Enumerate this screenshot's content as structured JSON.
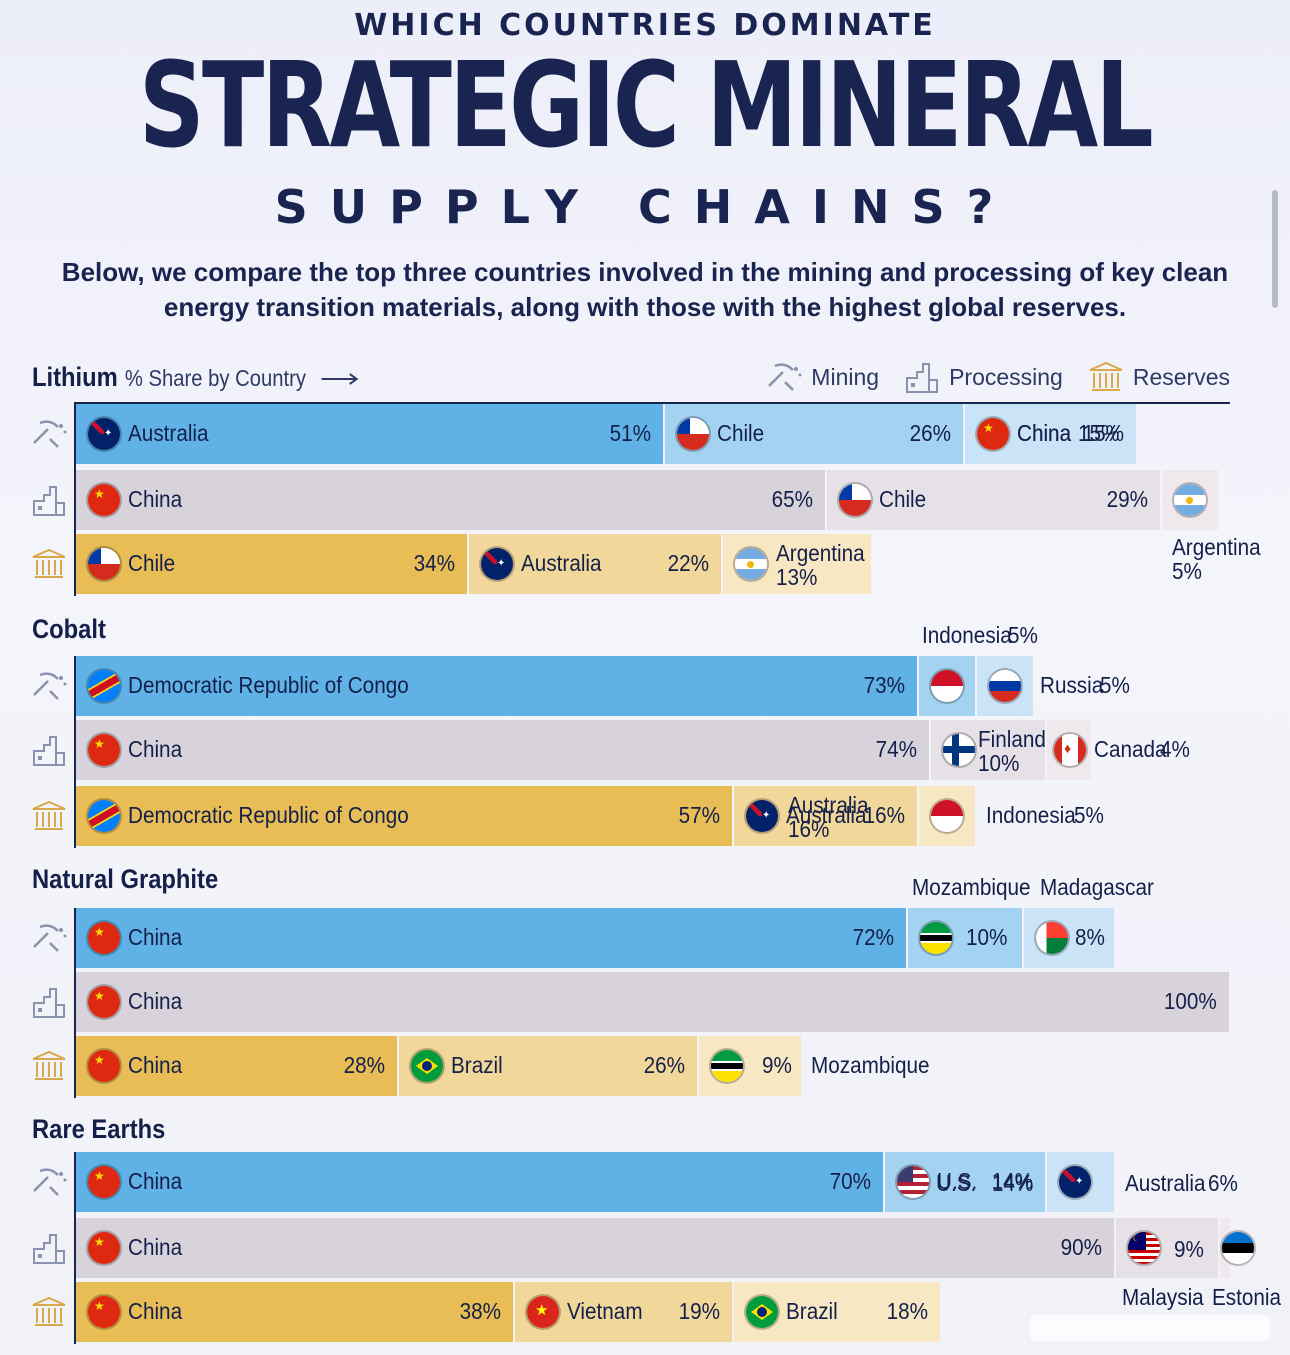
{
  "header": {
    "kicker": "WHICH COUNTRIES DOMINATE",
    "title": "STRATEGIC MINERAL",
    "subtitle": "SUPPLY CHAINS?",
    "intro": "Below, we compare the top three countries involved in the mining and processing of key clean energy transition materials, along with those with the highest global reserves."
  },
  "legend": {
    "share_label": "% Share by Country",
    "mining": "Mining",
    "processing": "Processing",
    "reserves": "Reserves"
  },
  "colors": {
    "mining": [
      "#5fb1e6",
      "#a4d2f1",
      "#cbe3f6"
    ],
    "processing": [
      "#d8d3da",
      "#e6e1e6",
      "#efe9ee"
    ],
    "reserves": [
      "#e8bd55",
      "#f1d79a",
      "#f7e7c2"
    ],
    "axis": "#1a2450"
  },
  "chart_data": {
    "type": "bar",
    "orientation": "horizontal-stacked",
    "unit": "% Share by Country",
    "minerals": [
      {
        "name": "Lithium",
        "mining": [
          {
            "country": "Australia",
            "value": 51
          },
          {
            "country": "Chile",
            "value": 26
          },
          {
            "country": "China",
            "value": 15
          }
        ],
        "processing": [
          {
            "country": "China",
            "value": 65
          },
          {
            "country": "Chile",
            "value": 29
          },
          {
            "country": "Argentina",
            "value": 5
          }
        ],
        "reserves": [
          {
            "country": "Chile",
            "value": 34
          },
          {
            "country": "Australia",
            "value": 22
          },
          {
            "country": "Argentina",
            "value": 13
          }
        ]
      },
      {
        "name": "Cobalt",
        "mining": [
          {
            "country": "Democratic Republic of Congo",
            "value": 73
          },
          {
            "country": "Indonesia",
            "value": 5
          },
          {
            "country": "Russia",
            "value": 5
          }
        ],
        "processing": [
          {
            "country": "China",
            "value": 74
          },
          {
            "country": "Finland",
            "value": 10
          },
          {
            "country": "Canada",
            "value": 4
          }
        ],
        "reserves": [
          {
            "country": "Democratic Republic of Congo",
            "value": 57
          },
          {
            "country": "Australia",
            "value": 16
          },
          {
            "country": "Indonesia",
            "value": 5
          }
        ]
      },
      {
        "name": "Natural Graphite",
        "mining": [
          {
            "country": "China",
            "value": 72
          },
          {
            "country": "Mozambique",
            "value": 10
          },
          {
            "country": "Madagascar",
            "value": 8
          }
        ],
        "processing": [
          {
            "country": "China",
            "value": 100
          }
        ],
        "reserves": [
          {
            "country": "China",
            "value": 28
          },
          {
            "country": "Brazil",
            "value": 26
          },
          {
            "country": "Mozambique",
            "value": 9
          }
        ]
      },
      {
        "name": "Rare Earths",
        "mining": [
          {
            "country": "China",
            "value": 70
          },
          {
            "country": "U.S.",
            "value": 14
          },
          {
            "country": "Australia",
            "value": 6
          }
        ],
        "processing": [
          {
            "country": "China",
            "value": 90
          },
          {
            "country": "Malaysia",
            "value": 9
          },
          {
            "country": "Estonia",
            "value": 1
          }
        ],
        "reserves": [
          {
            "country": "China",
            "value": 38
          },
          {
            "country": "Vietnam",
            "value": 19
          },
          {
            "country": "Brazil",
            "value": 18
          }
        ]
      }
    ]
  },
  "text": {
    "lithium": {
      "m1c": "Australia",
      "m1v": "51%",
      "m2c": "Chile",
      "m2v": "26%",
      "m3c": "China",
      "m3v": "15%",
      "p1c": "China",
      "p1v": "65%",
      "p2c": "Chile",
      "p2v": "29%",
      "p3c": "Argentina",
      "p3v": "5%",
      "r1c": "Chile",
      "r1v": "34%",
      "r2c": "Australia",
      "r2v": "22%",
      "r3c": "Argentina",
      "r3v": "13%"
    },
    "cobalt": {
      "m1c": "Democratic Republic of Congo",
      "m1v": "73%",
      "m2c": "Indonesia",
      "m2v": "5%",
      "m3c": "Russia",
      "m3v": "5%",
      "p1c": "China",
      "p1v": "74%",
      "p2c": "Finland",
      "p2v": "10%",
      "p3c": "Canada",
      "p3v": "4%",
      "r1c": "Democratic Republic of Congo",
      "r1v": "57%",
      "r2c": "Australia",
      "r2v": "16%",
      "r3c": "Indonesia",
      "r3v": "5%"
    },
    "graphite": {
      "m1c": "China",
      "m1v": "72%",
      "m2c": "Mozambique",
      "m2v": "10%",
      "m3c": "Madagascar",
      "m3v": "8%",
      "p1c": "China",
      "p1v": "100%",
      "r1c": "China",
      "r1v": "28%",
      "r2c": "Brazil",
      "r2v": "26%",
      "r3c": "Mozambique",
      "r3v": "9%"
    },
    "rare": {
      "m1c": "China",
      "m1v": "70%",
      "m2c": "U.S.",
      "m2v": "14%",
      "m3c": "Australia",
      "m3v": "6%",
      "p1c": "China",
      "p1v": "90%",
      "p2c": "Malaysia",
      "p2v": "9%",
      "p3c": "Estonia",
      "r1c": "China",
      "r1v": "38%",
      "r2c": "Vietnam",
      "r2v": "19%",
      "r3c": "Brazil",
      "r3v": "18%"
    }
  }
}
